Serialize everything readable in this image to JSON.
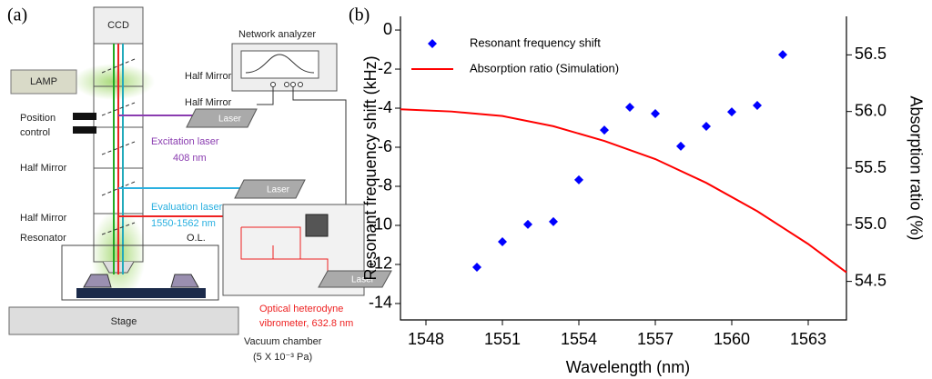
{
  "panel_labels": {
    "a": "(a)",
    "b": "(b)"
  },
  "diagram": {
    "ccd": "CCD",
    "lamp": "LAMP",
    "network_analyzer": "Network analyzer",
    "half_mirror_1": "Half Mirror",
    "half_mirror_2": "Half Mirror",
    "half_mirror_3": "Half Mirror",
    "half_mirror_4": "Half Mirror",
    "position_control": [
      "Position",
      "control"
    ],
    "excitation_laser": [
      "Excitation laser",
      "408 nm"
    ],
    "evaluation_laser": [
      "Evaluation laser",
      "1550-1562 nm"
    ],
    "laser_1": "Laser",
    "laser_2": "Laser",
    "laser_3": "Laser",
    "resonator": "Resonator",
    "objective_lens": "O.L.",
    "vibrometer": [
      "Optical heterodyne",
      "vibrometer, 632.8 nm"
    ],
    "stage": "Stage",
    "vacuum_chamber": [
      "Vacuum chamber",
      "(5 X 10⁻³ Pa)"
    ]
  },
  "chart_data": {
    "type": "scatter",
    "x_label": "Wavelength (nm)",
    "y_label": "Resonant frequency shift (kHz)",
    "y2_label": "Absorption ratio (%)",
    "xlim": [
      1547,
      1564.5
    ],
    "xticks": [
      1548,
      1551,
      1554,
      1557,
      1560,
      1563
    ],
    "ylim": [
      -14.84,
      0.7
    ],
    "yticks": [
      0,
      -2,
      -4,
      -6,
      -8,
      -10,
      -12,
      -14
    ],
    "y2lim": [
      54.16,
      56.84
    ],
    "y2ticks": [
      {
        "value": 54.5,
        "label": "54.5"
      },
      {
        "value": 55,
        "label": "55.0"
      },
      {
        "value": 55.5,
        "label": "55.5"
      },
      {
        "value": 56,
        "label": "56.0"
      },
      {
        "value": 56.5,
        "label": "56.5"
      }
    ],
    "legend": "upper left",
    "series": [
      {
        "name": "Resonant frequency shift",
        "color": "#0000ff",
        "marker": "diamond",
        "x": [
          1550,
          1551,
          1552,
          1553,
          1554,
          1555,
          1556,
          1557,
          1558,
          1559,
          1560,
          1561,
          1562
        ],
        "values": [
          -12.14,
          -10.84,
          -9.95,
          -9.81,
          -7.67,
          -5.12,
          -3.95,
          -4.28,
          -5.95,
          -4.93,
          -4.19,
          -3.86,
          -1.26
        ]
      },
      {
        "name": "Absorption ratio (Simulation)",
        "color": "#ff0000",
        "type": "line",
        "axis": "y2",
        "x": [
          1547,
          1549,
          1551,
          1553,
          1555,
          1557,
          1559,
          1561,
          1563,
          1564.5
        ],
        "values": [
          56.02,
          56.0,
          55.96,
          55.87,
          55.74,
          55.58,
          55.37,
          55.12,
          54.83,
          54.58
        ]
      }
    ]
  }
}
